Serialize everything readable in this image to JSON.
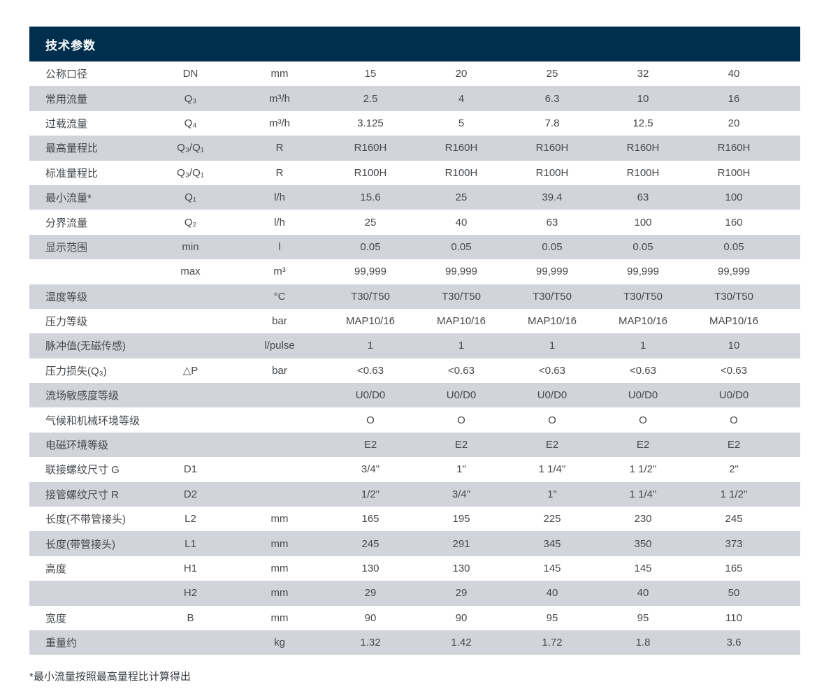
{
  "colors": {
    "header_bar_bg": "#002f4e",
    "stripe_row_bg": "#d2d4dc",
    "header_title_text": "#ffffff",
    "body_text": "#45494d"
  },
  "table": {
    "title": "技术参数",
    "rows": [
      {
        "name": "公称口径",
        "symbol": "DN",
        "unit": "mm",
        "values": [
          "15",
          "20",
          "25",
          "32",
          "40"
        ]
      },
      {
        "name": "常用流量",
        "symbol": "Q₃",
        "unit": "m³/h",
        "values": [
          "2.5",
          "4",
          "6.3",
          "10",
          "16"
        ]
      },
      {
        "name": "过载流量",
        "symbol": "Q₄",
        "unit": "m³/h",
        "values": [
          "3.125",
          "5",
          "7.8",
          "12.5",
          "20"
        ]
      },
      {
        "name": "最高量程比",
        "symbol": "Q₃/Q₁",
        "unit": "R",
        "values": [
          "R160H",
          "R160H",
          "R160H",
          "R160H",
          "R160H"
        ]
      },
      {
        "name": "标准量程比",
        "symbol": "Q₃/Q₁",
        "unit": "R",
        "values": [
          "R100H",
          "R100H",
          "R100H",
          "R100H",
          "R100H"
        ]
      },
      {
        "name": "最小流量*",
        "symbol": "Q₁",
        "unit": "l/h",
        "values": [
          "15.6",
          "25",
          "39.4",
          "63",
          "100"
        ]
      },
      {
        "name": "分界流量",
        "symbol": "Q₂",
        "unit": "l/h",
        "values": [
          "25",
          "40",
          "63",
          "100",
          "160"
        ]
      },
      {
        "name": "显示范围",
        "symbol": "min",
        "unit": "l",
        "values": [
          "0.05",
          "0.05",
          "0.05",
          "0.05",
          "0.05"
        ]
      },
      {
        "name": "",
        "symbol": "max",
        "unit": "m³",
        "values": [
          "99,999",
          "99,999",
          "99,999",
          "99,999",
          "99,999"
        ]
      },
      {
        "name": "温度等级",
        "symbol": "",
        "unit": "°C",
        "values": [
          "T30/T50",
          "T30/T50",
          "T30/T50",
          "T30/T50",
          "T30/T50"
        ]
      },
      {
        "name": "压力等级",
        "symbol": "",
        "unit": "bar",
        "values": [
          "MAP10/16",
          "MAP10/16",
          "MAP10/16",
          "MAP10/16",
          "MAP10/16"
        ]
      },
      {
        "name": "脉冲值(无磁传感)",
        "symbol": "",
        "unit": "l/pulse",
        "values": [
          "1",
          "1",
          "1",
          "1",
          "10"
        ]
      },
      {
        "name": "压力损失(Q₃)",
        "symbol": "△P",
        "unit": "bar",
        "values": [
          "<0.63",
          "<0.63",
          "<0.63",
          "<0.63",
          "<0.63"
        ]
      },
      {
        "name": "流场敏感度等级",
        "symbol": "",
        "unit": "",
        "values": [
          "U0/D0",
          "U0/D0",
          "U0/D0",
          "U0/D0",
          "U0/D0"
        ]
      },
      {
        "name": "气候和机械环境等级",
        "symbol": "",
        "unit": "",
        "values": [
          "O",
          "O",
          "O",
          "O",
          "O"
        ]
      },
      {
        "name": "电磁环境等级",
        "symbol": "",
        "unit": "",
        "values": [
          "E2",
          "E2",
          "E2",
          "E2",
          "E2"
        ]
      },
      {
        "name": "联接螺纹尺寸 G",
        "symbol": "D1",
        "unit": "",
        "values": [
          "3/4\"",
          "1\"",
          "1 1/4\"",
          "1 1/2\"",
          "2\""
        ]
      },
      {
        "name": "接管螺纹尺寸 R",
        "symbol": "D2",
        "unit": "",
        "values": [
          "1/2\"",
          "3/4\"",
          "1\"",
          "1 1/4\"",
          "1 1/2\""
        ]
      },
      {
        "name": "长度(不带管接头)",
        "symbol": "L2",
        "unit": "mm",
        "values": [
          "165",
          "195",
          "225",
          "230",
          "245"
        ]
      },
      {
        "name": "长度(带管接头)",
        "symbol": "L1",
        "unit": "mm",
        "values": [
          "245",
          "291",
          "345",
          "350",
          "373"
        ]
      },
      {
        "name": "高度",
        "symbol": "H1",
        "unit": "mm",
        "values": [
          "130",
          "130",
          "145",
          "145",
          "165"
        ]
      },
      {
        "name": "",
        "symbol": "H2",
        "unit": "mm",
        "values": [
          "29",
          "29",
          "40",
          "40",
          "50"
        ]
      },
      {
        "name": "宽度",
        "symbol": "B",
        "unit": "mm",
        "values": [
          "90",
          "90",
          "95",
          "95",
          "110"
        ]
      },
      {
        "name": "重量约",
        "symbol": "",
        "unit": "kg",
        "values": [
          "1.32",
          "1.42",
          "1.72",
          "1.8",
          "3.6"
        ]
      }
    ]
  },
  "footnote": "*最小流量按照最高量程比计算得出"
}
